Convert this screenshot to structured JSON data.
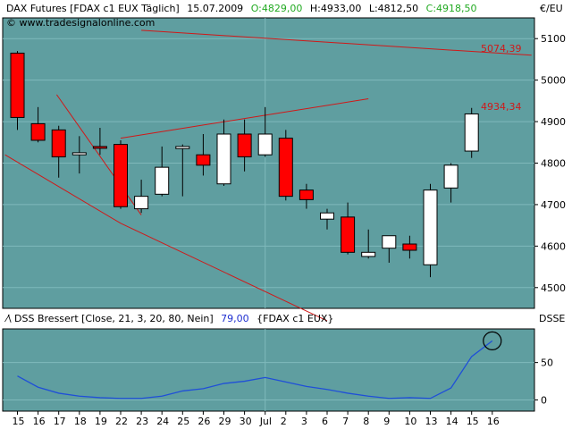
{
  "header": {
    "instrument": "DAX Futures [FDAX c1 EUX  Täglich]",
    "date": "15.07.2009",
    "open": "O:4829,00",
    "high": "H:4933,00",
    "low": "L:4812,50",
    "close": "C:4918,50",
    "copyright": "© www.tradesignalonline.com"
  },
  "price_axis_label": "€/EU",
  "indicator": {
    "name": "DSS Bressert [Close, 21, 3, 20, 80, Nein]",
    "value": "79,00",
    "symbol": "{FDAX c1 EUX}",
    "axis_label": "DSSE"
  },
  "colors": {
    "background": "#5f9ea0",
    "bull": "#ffffff",
    "bear": "#ff0000",
    "trendline": "#d01818",
    "indicator_line": "#1f4fd8",
    "ohlc_value": "#22aa22",
    "indicator_value": "#1f2fd0"
  },
  "chart_data": [
    {
      "type": "candlestick",
      "title": "DAX Futures [FDAX c1 EUX  Täglich]",
      "ylabel": "€/EU",
      "ylim": [
        4450,
        5150
      ],
      "yticks": [
        4500,
        4600,
        4700,
        4800,
        4900,
        5000,
        5100
      ],
      "x_labels": [
        "15",
        "16",
        "17",
        "18",
        "19",
        "22",
        "23",
        "24",
        "25",
        "26",
        "29",
        "30",
        "Jul",
        "2",
        "3",
        "6",
        "7",
        "8",
        "9",
        "10",
        "13",
        "14",
        "15",
        "16"
      ],
      "candles": [
        {
          "x": "15",
          "o": 5065,
          "h": 5070,
          "l": 4880,
          "c": 4910
        },
        {
          "x": "16",
          "o": 4895,
          "h": 4935,
          "l": 4850,
          "c": 4855
        },
        {
          "x": "17",
          "o": 4880,
          "h": 4890,
          "l": 4765,
          "c": 4815
        },
        {
          "x": "18",
          "o": 4820,
          "h": 4865,
          "l": 4775,
          "c": 4825
        },
        {
          "x": "19",
          "o": 4840,
          "h": 4885,
          "l": 4820,
          "c": 4838
        },
        {
          "x": "22",
          "o": 4845,
          "h": 4855,
          "l": 4690,
          "c": 4695
        },
        {
          "x": "23",
          "o": 4690,
          "h": 4760,
          "l": 4680,
          "c": 4720
        },
        {
          "x": "24",
          "o": 4725,
          "h": 4840,
          "l": 4720,
          "c": 4790
        },
        {
          "x": "25",
          "o": 4835,
          "h": 4845,
          "l": 4720,
          "c": 4840
        },
        {
          "x": "26",
          "o": 4820,
          "h": 4870,
          "l": 4770,
          "c": 4795
        },
        {
          "x": "29",
          "o": 4750,
          "h": 4905,
          "l": 4745,
          "c": 4870
        },
        {
          "x": "30",
          "o": 4870,
          "h": 4905,
          "l": 4780,
          "c": 4815
        },
        {
          "x": "Jul",
          "o": 4820,
          "h": 4935,
          "l": 4815,
          "c": 4870
        },
        {
          "x": "2",
          "o": 4860,
          "h": 4880,
          "l": 4710,
          "c": 4720
        },
        {
          "x": "3",
          "o": 4735,
          "h": 4750,
          "l": 4690,
          "c": 4712
        },
        {
          "x": "6",
          "o": 4665,
          "h": 4690,
          "l": 4640,
          "c": 4680
        },
        {
          "x": "7",
          "o": 4670,
          "h": 4705,
          "l": 4580,
          "c": 4585
        },
        {
          "x": "8",
          "o": 4575,
          "h": 4640,
          "l": 4570,
          "c": 4585
        },
        {
          "x": "9",
          "o": 4595,
          "h": 4625,
          "l": 4560,
          "c": 4625
        },
        {
          "x": "10",
          "o": 4605,
          "h": 4625,
          "l": 4570,
          "c": 4590
        },
        {
          "x": "13",
          "o": 4555,
          "h": 4750,
          "l": 4525,
          "c": 4735
        },
        {
          "x": "14",
          "o": 4740,
          "h": 4800,
          "l": 4705,
          "c": 4795
        },
        {
          "x": "15",
          "o": 4829,
          "h": 4933,
          "l": 4812.5,
          "c": 4918.5
        }
      ],
      "annotations": [
        {
          "text": "5074,39",
          "value": 5074.39
        },
        {
          "text": "4934,34",
          "value": 4934.34
        }
      ],
      "trendlines": [
        {
          "from": {
            "x": "15",
            "y": 4820
          },
          "to": {
            "x": "22",
            "y": 4655
          }
        },
        {
          "from": {
            "x": "22",
            "y": 4655
          },
          "to": {
            "x": "6",
            "y": 4420
          }
        },
        {
          "from": {
            "x": "22",
            "y": 4860
          },
          "to": {
            "x": "8",
            "y": 4955
          }
        },
        {
          "from": {
            "x": "23",
            "y": 4675
          },
          "to": {
            "x": "16",
            "y": 4965
          }
        },
        {
          "from": {
            "x": "23",
            "y": 5120
          },
          "to": {
            "x": "16",
            "y": 5060
          }
        }
      ]
    },
    {
      "type": "line",
      "title": "DSS Bressert [Close, 21, 3, 20, 80, Nein]",
      "ylabel": "DSSE",
      "ylim": [
        -15,
        95
      ],
      "yticks": [
        0,
        50
      ],
      "x_labels": [
        "15",
        "16",
        "17",
        "18",
        "19",
        "22",
        "23",
        "24",
        "25",
        "26",
        "29",
        "30",
        "Jul",
        "2",
        "3",
        "6",
        "7",
        "8",
        "9",
        "10",
        "13",
        "14",
        "15",
        "16"
      ],
      "series": [
        {
          "values": [
            32,
            17,
            9,
            5,
            3,
            2,
            2,
            5,
            12,
            15,
            22,
            25,
            30,
            24,
            18,
            14,
            9,
            5,
            2,
            3,
            2,
            16,
            58,
            79
          ]
        }
      ],
      "marker": {
        "x": "15",
        "y": 79
      }
    }
  ]
}
